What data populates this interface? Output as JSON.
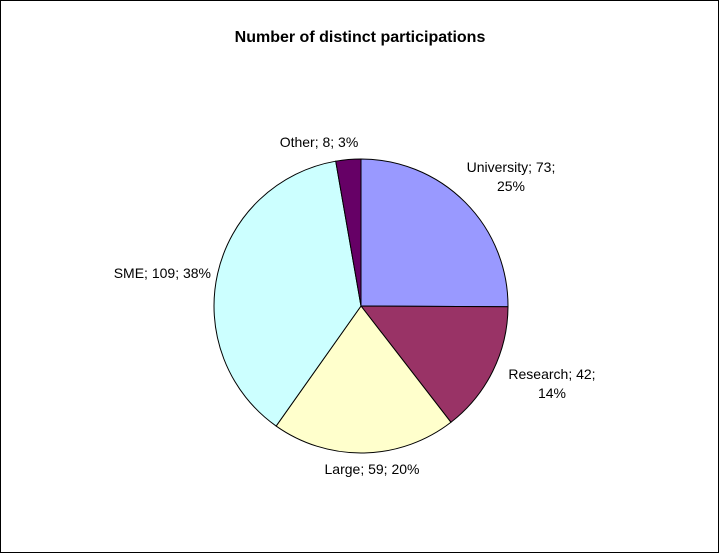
{
  "chart_data": {
    "type": "pie",
    "title": "Number of distinct participations",
    "slices": [
      {
        "category": "University",
        "value": 73,
        "percent": "25%",
        "label_line1": "University; 73;",
        "label_line2": "25%",
        "color": "#9999ff"
      },
      {
        "category": "Research",
        "value": 42,
        "percent": "14%",
        "label_line1": "Research; 42;",
        "label_line2": "14%",
        "color": "#993366"
      },
      {
        "category": "Large",
        "value": 59,
        "percent": "20%",
        "label_line1": "Large; 59; 20%",
        "label_line2": "",
        "color": "#ffffcc"
      },
      {
        "category": "SME",
        "value": 109,
        "percent": "38%",
        "label_line1": "SME; 109; 38%",
        "label_line2": "",
        "color": "#ccffff"
      },
      {
        "category": "Other",
        "value": 8,
        "percent": "3%",
        "label_line1": "Other; 8; 3%",
        "label_line2": "",
        "color": "#660066"
      }
    ],
    "start": "12 o'clock",
    "direction": "clockwise",
    "legend": "none"
  }
}
